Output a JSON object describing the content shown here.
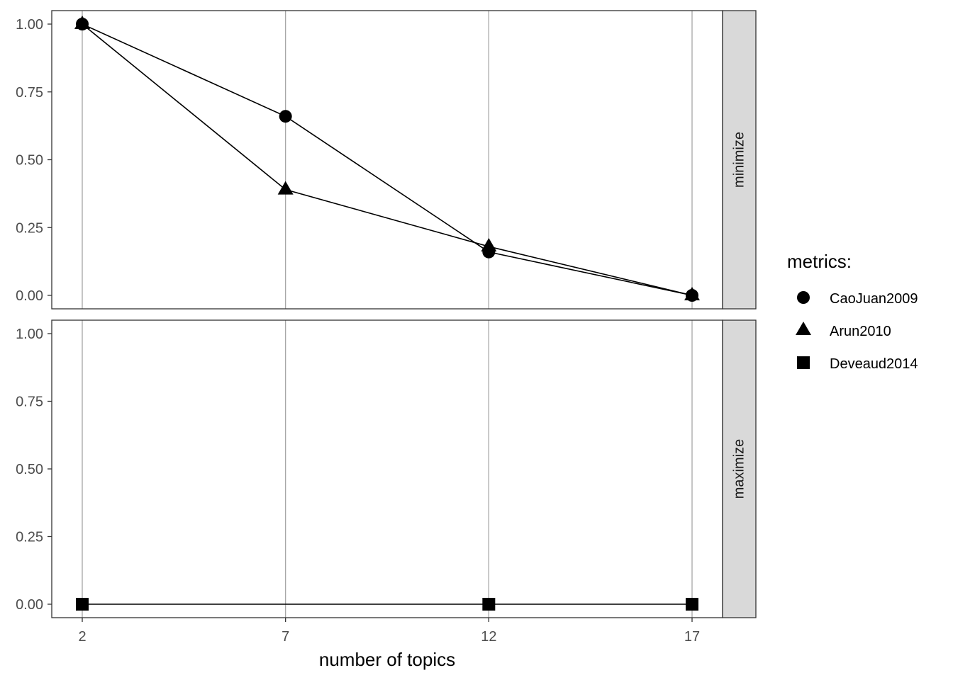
{
  "chart_data": {
    "type": "line",
    "xlabel": "number of topics",
    "x_ticks": [
      2,
      7,
      12,
      17
    ],
    "y_ticks": [
      "0.00",
      "0.25",
      "0.50",
      "0.75",
      "1.00"
    ],
    "ylim": [
      0,
      1
    ],
    "xlim": [
      2,
      17
    ],
    "grid": "vertical",
    "legend": {
      "title": "metrics:",
      "position": "right",
      "entries": [
        {
          "name": "CaoJuan2009",
          "shape": "circle"
        },
        {
          "name": "Arun2010",
          "shape": "triangle"
        },
        {
          "name": "Deveaud2014",
          "shape": "square"
        }
      ]
    },
    "panels": [
      {
        "strip": "minimize",
        "series": [
          {
            "name": "CaoJuan2009",
            "shape": "circle",
            "x": [
              2,
              7,
              12,
              17
            ],
            "values": [
              1.0,
              0.66,
              0.16,
              0.0
            ]
          },
          {
            "name": "Arun2010",
            "shape": "triangle",
            "x": [
              2,
              7,
              12,
              17
            ],
            "values": [
              1.0,
              0.39,
              0.18,
              0.0
            ]
          }
        ]
      },
      {
        "strip": "maximize",
        "series": [
          {
            "name": "Deveaud2014",
            "shape": "square",
            "x": [
              2,
              12,
              17
            ],
            "values": [
              0.0,
              0.0,
              0.0
            ]
          }
        ]
      }
    ]
  }
}
